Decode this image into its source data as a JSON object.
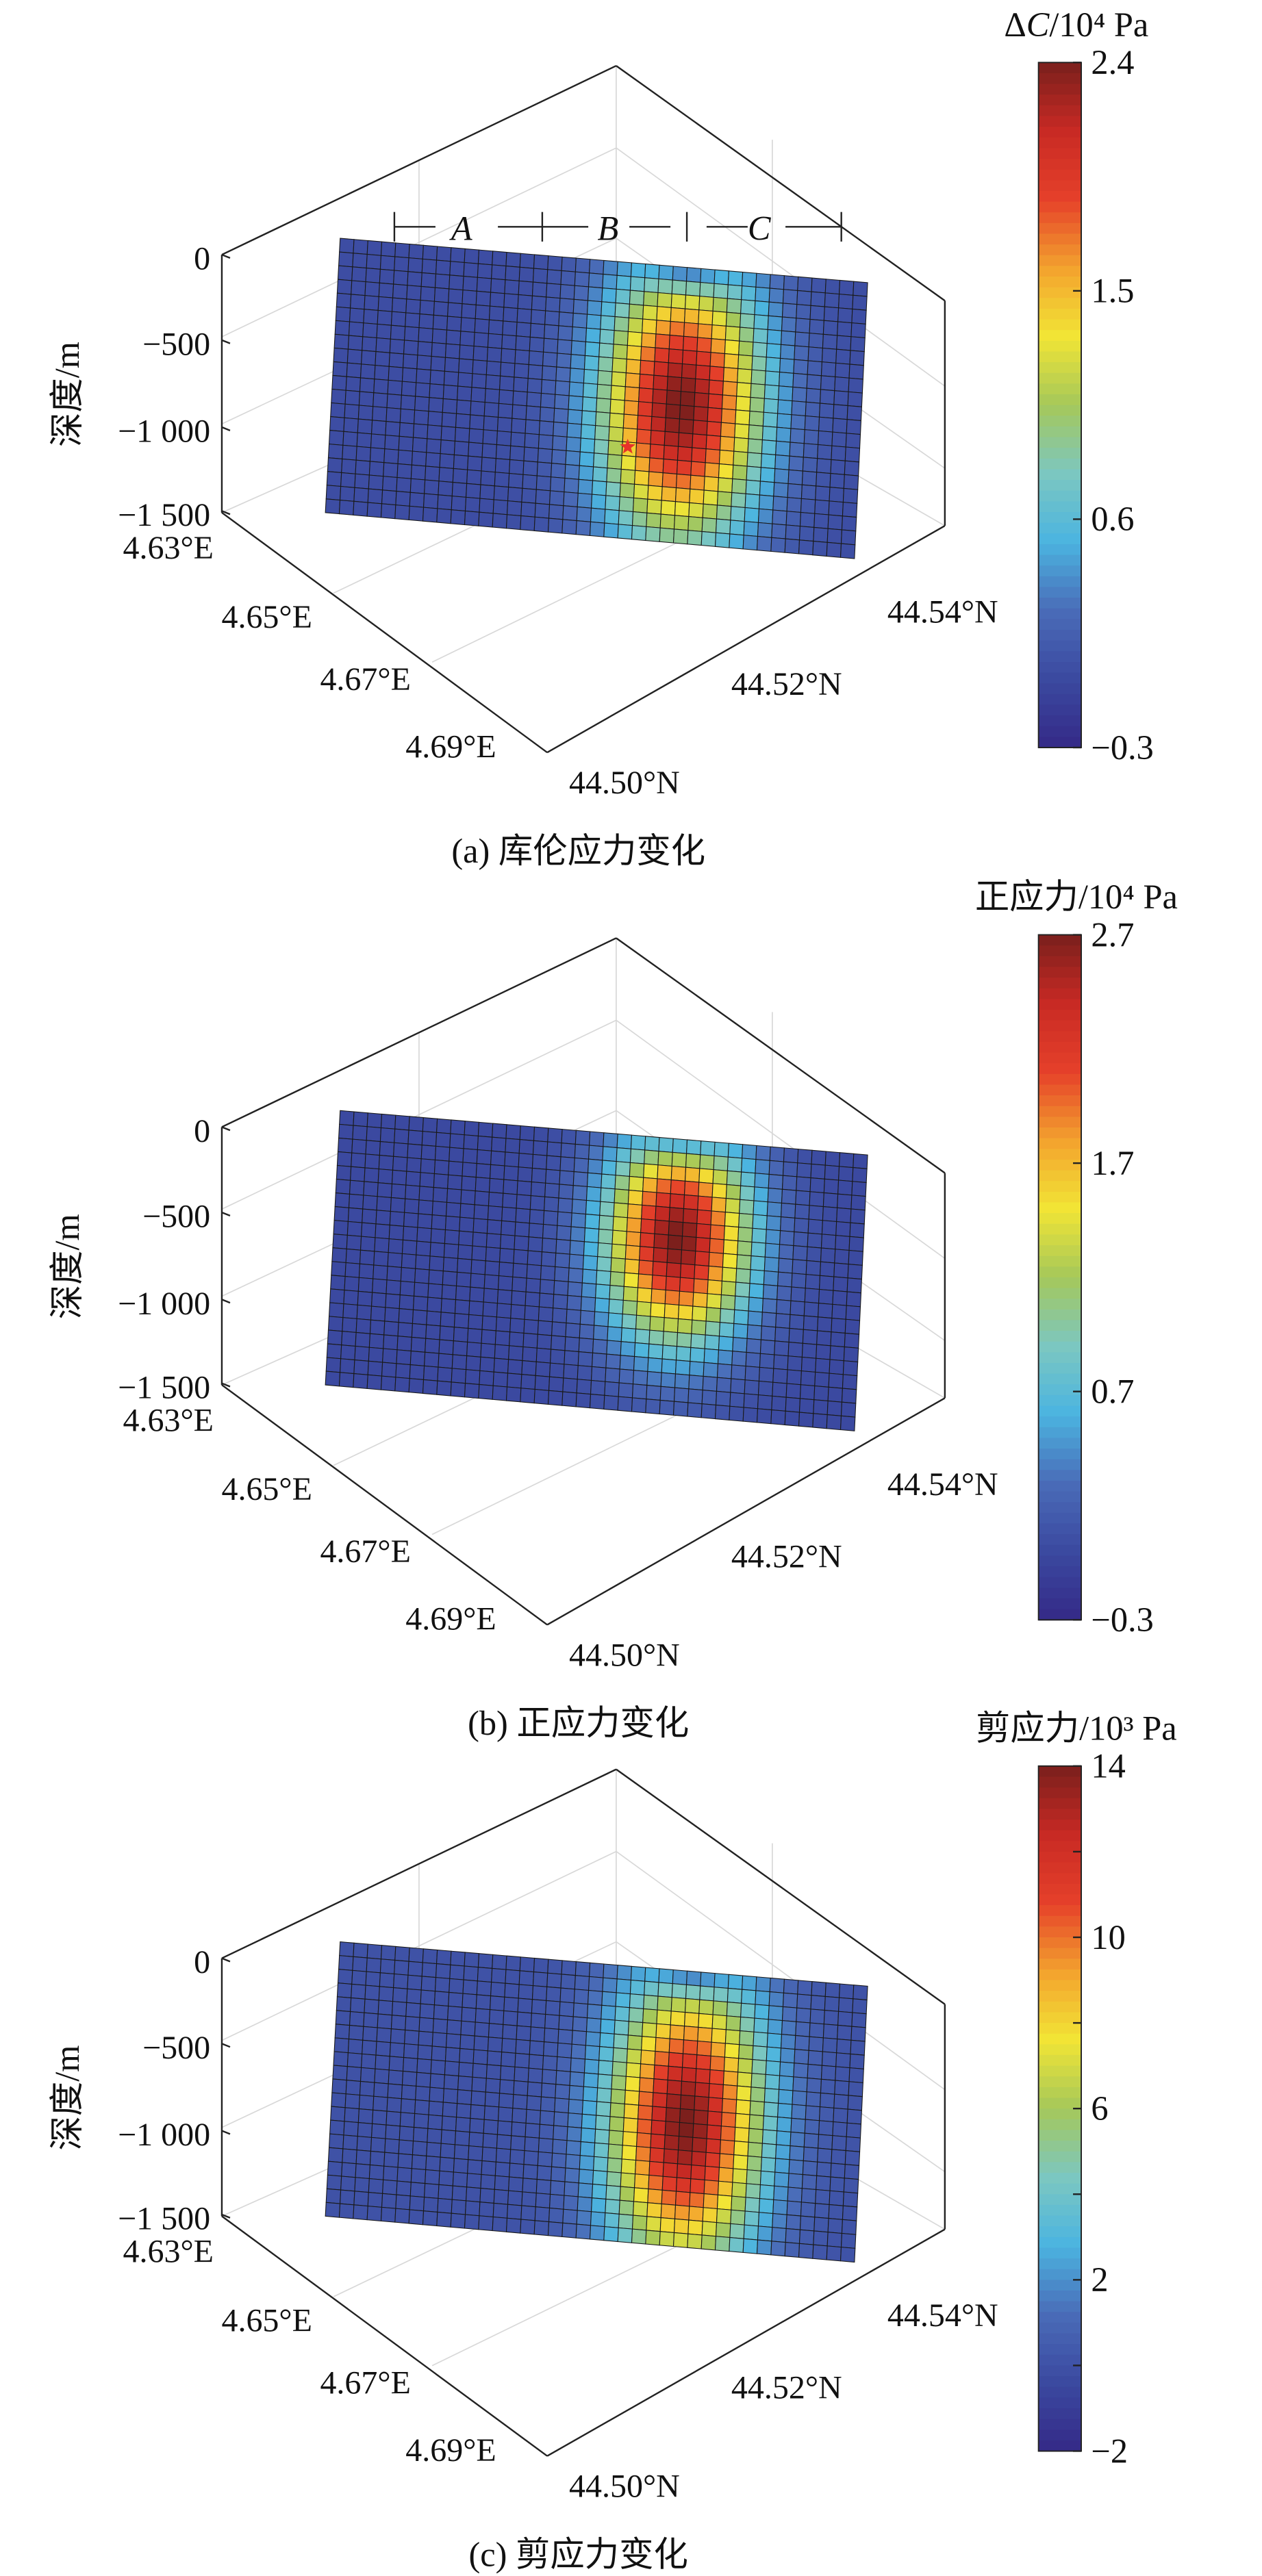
{
  "chart_data": [
    {
      "type": "heatmap",
      "title": "(a) 库伦应力变化",
      "colorbar": {
        "label_prefix": "Δ",
        "label_italic": "C",
        "label_suffix": "/10⁴ Pa",
        "range": [
          -0.3,
          2.4
        ],
        "ticks": [
          2.4,
          1.5,
          0.6,
          -0.3
        ],
        "tick_labels": [
          "2.4",
          "1.5",
          "0.6",
          "−0.3"
        ],
        "minor_ticks": []
      },
      "zlabel": "深度/m",
      "z_ticks": [
        0,
        -500,
        -1000,
        -1500
      ],
      "z_tick_labels": [
        "0",
        "−500",
        "−1 000",
        "−1 500"
      ],
      "x_tick_labels": [
        "4.63°E",
        "4.65°E",
        "4.67°E",
        "4.69°E"
      ],
      "y_tick_labels": [
        "44.50°N",
        "44.52°N",
        "44.54°N"
      ],
      "segments": [
        "A",
        "B",
        "C"
      ],
      "epicenter_marker": true,
      "field": {
        "peak": 2.4,
        "min": -0.3,
        "peak_depth_m": -800,
        "peak_segment": "C"
      }
    },
    {
      "type": "heatmap",
      "title": "(b) 正应力变化",
      "colorbar": {
        "label_prefix": "正应力/10⁴ Pa",
        "label_italic": "",
        "label_suffix": "",
        "range": [
          -0.3,
          2.7
        ],
        "ticks": [
          2.7,
          1.7,
          0.7,
          -0.3
        ],
        "tick_labels": [
          "2.7",
          "1.7",
          "0.7",
          "−0.3"
        ],
        "minor_ticks": []
      },
      "zlabel": "深度/m",
      "z_ticks": [
        0,
        -500,
        -1000,
        -1500
      ],
      "z_tick_labels": [
        "0",
        "−500",
        "−1 000",
        "−1 500"
      ],
      "x_tick_labels": [
        "4.63°E",
        "4.65°E",
        "4.67°E",
        "4.69°E"
      ],
      "y_tick_labels": [
        "44.50°N",
        "44.52°N",
        "44.54°N"
      ],
      "segments": [],
      "epicenter_marker": false,
      "field": {
        "peak": 2.7,
        "min": -0.3,
        "peak_depth_m": -550,
        "peak_segment": "C"
      }
    },
    {
      "type": "heatmap",
      "title": "(c) 剪应力变化",
      "colorbar": {
        "label_prefix": "剪应力/10³ Pa",
        "label_italic": "",
        "label_suffix": "",
        "range": [
          -2,
          14
        ],
        "ticks": [
          14,
          10,
          6,
          2,
          -2
        ],
        "tick_labels": [
          "14",
          "10",
          "6",
          "2",
          "−2"
        ],
        "minor_ticks": [
          12,
          8,
          4,
          0
        ]
      },
      "zlabel": "深度/m",
      "z_ticks": [
        0,
        -500,
        -1000,
        -1500
      ],
      "z_tick_labels": [
        "0",
        "−500",
        "−1 000",
        "−1 500"
      ],
      "x_tick_labels": [
        "4.63°E",
        "4.65°E",
        "4.67°E",
        "4.69°E"
      ],
      "y_tick_labels": [
        "44.50°N",
        "44.52°N",
        "44.54°N"
      ],
      "segments": [],
      "epicenter_marker": false,
      "field": {
        "peak": 14,
        "min": -2,
        "peak_depth_m": -900,
        "peak_segment": "C"
      }
    }
  ],
  "colors": {
    "colormap": [
      "#352a87",
      "#3b49a0",
      "#4a6cb8",
      "#4bb4e0",
      "#7cc7c0",
      "#a5c85a",
      "#f2e535",
      "#f3a22e",
      "#e5402a",
      "#c82a24",
      "#7a1f1c"
    ],
    "axis": "#222222",
    "grid": "#d8d8d8",
    "marker": "#e8322a"
  }
}
